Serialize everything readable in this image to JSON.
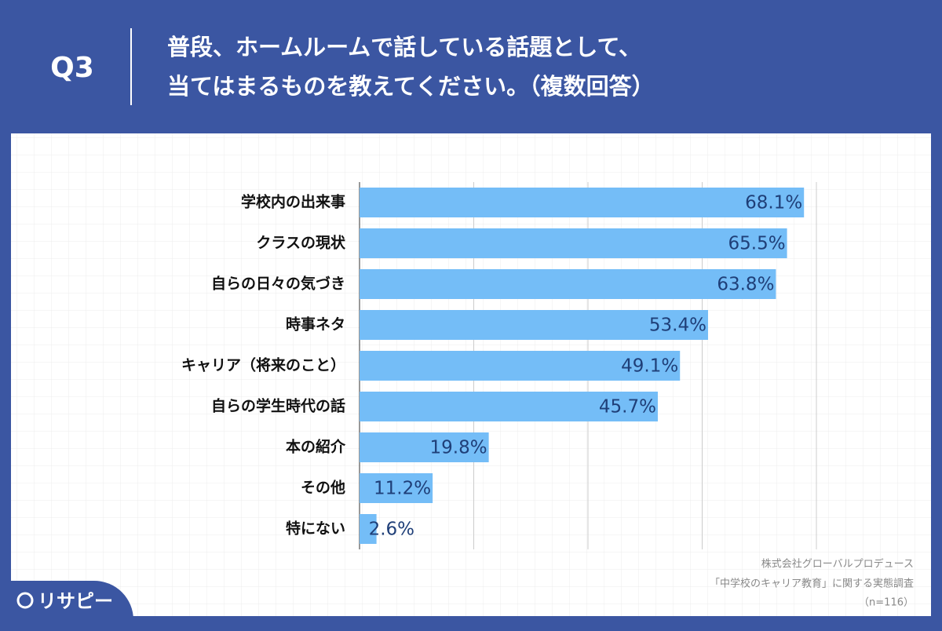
{
  "header": {
    "question": "Q3",
    "title_lines": [
      "普段、ホームルームで話している話題として、",
      "当てはまるものを教えてください。（複数回答）"
    ]
  },
  "chart_data": {
    "type": "barh",
    "categories": [
      "学校内の出来事",
      "クラスの現状",
      "自らの日々の気づき",
      "時事ネタ",
      "キャリア（将来のこと）",
      "自らの学生時代の話",
      "本の紹介",
      "その他",
      "特にない"
    ],
    "values": [
      68.1,
      65.5,
      63.8,
      53.4,
      49.1,
      45.7,
      19.8,
      11.2,
      2.6
    ],
    "value_labels": [
      "68.1%",
      "65.5%",
      "63.8%",
      "53.4%",
      "49.1%",
      "45.7%",
      "19.8%",
      "11.2%",
      "2.6%"
    ],
    "color": "#74bdf7",
    "xlim": [
      0,
      70
    ],
    "xticks": [
      0,
      17.5,
      35,
      52.5,
      70
    ],
    "grid": true
  },
  "footer": {
    "source_lines": [
      "株式会社グローバルプロデュース",
      "「中学校のキャリア教育」に関する実態調査",
      "（n=116）"
    ],
    "logo": "リサピー"
  }
}
